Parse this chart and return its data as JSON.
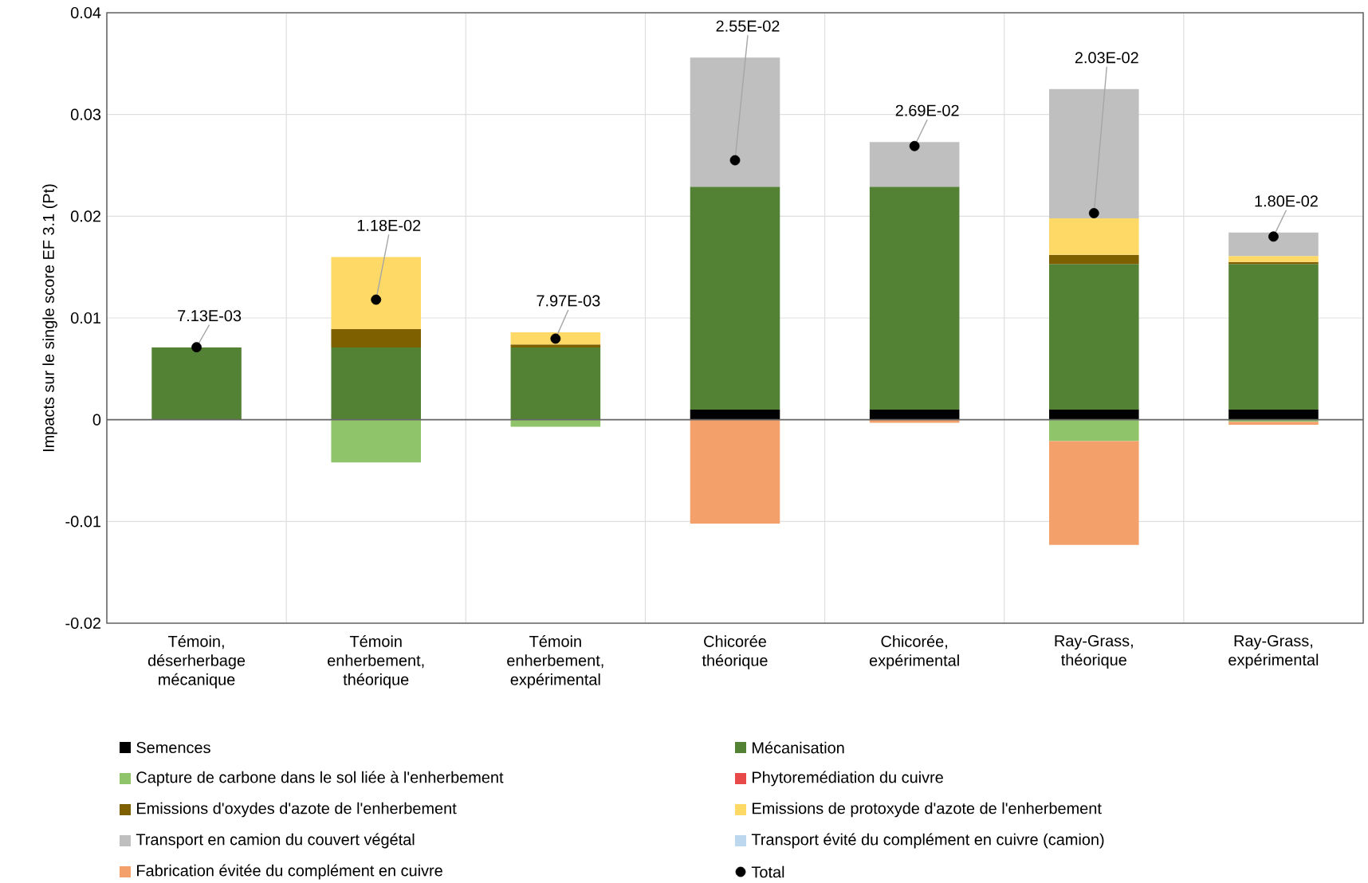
{
  "chart_data": {
    "type": "bar",
    "stacked": true,
    "ylabel": "Impacts sur le single score EF 3.1 (Pt)",
    "categories": [
      "Témoin, déserherbage mécanique",
      "Témoin enherbement, théorique",
      "Témoin enherbement, expérimental",
      "Chicorée théorique",
      "Chicorée, expérimental",
      "Ray-Grass, théorique",
      "Ray-Grass, expérimental"
    ],
    "ylim": [
      -0.02,
      0.04
    ],
    "yticks": [
      -0.02,
      -0.01,
      0,
      0.01,
      0.02,
      0.03,
      0.04
    ],
    "grid": true,
    "legend": "bottom",
    "series": [
      {
        "name": "Semences",
        "color": "#000000",
        "values": [
          null,
          null,
          null,
          0.001,
          0.001,
          0.001,
          0.001
        ]
      },
      {
        "name": "Mécanisation",
        "color": "#548235",
        "values": [
          0.0071,
          0.0071,
          0.0071,
          0.0219,
          0.0219,
          0.0143,
          0.0143
        ]
      },
      {
        "name": "Capture de carbone dans le sol liée à l'enherbement",
        "color": "#8fc46a",
        "values": [
          null,
          -0.0042,
          -0.0007,
          null,
          null,
          -0.0021,
          -0.0002
        ]
      },
      {
        "name": "Phytoremédiation du cuivre",
        "color": "#e84a4a",
        "values": [
          null,
          null,
          null,
          null,
          null,
          null,
          null
        ]
      },
      {
        "name": "Emissions d'oxydes d'azote de l'enherbement",
        "color": "#7f6000",
        "values": [
          null,
          0.0018,
          0.0003,
          null,
          null,
          0.0009,
          0.0002
        ]
      },
      {
        "name": "Emissions de protoxyde d'azote de l'enherbement",
        "color": "#ffd966",
        "values": [
          null,
          0.0071,
          0.0012,
          null,
          null,
          0.0036,
          0.0006
        ]
      },
      {
        "name": "Transport en camion du couvert végétal",
        "color": "#bfbfbf",
        "values": [
          null,
          null,
          null,
          0.0127,
          0.0044,
          0.0127,
          0.0023
        ]
      },
      {
        "name": "Transport évité du complément en cuivre (camion)",
        "color": "#bdd7ee",
        "values": [
          null,
          null,
          null,
          null,
          null,
          null,
          null
        ]
      },
      {
        "name": "Fabrication évitée du complément en cuivre",
        "color": "#f4a06a",
        "values": [
          null,
          null,
          null,
          -0.0102,
          -0.0003,
          -0.0102,
          -0.0003
        ]
      },
      {
        "name": "Total",
        "type": "scatter",
        "marker": "circle",
        "color": "#000000",
        "values": [
          0.00713,
          0.0118,
          0.00797,
          0.0255,
          0.0269,
          0.0203,
          0.018
        ],
        "value_labels": [
          "7.13E-03",
          "1.18E-02",
          "7.97E-03",
          "2.55E-02",
          "2.69E-02",
          "2.03E-02",
          "1.80E-02"
        ]
      }
    ]
  }
}
